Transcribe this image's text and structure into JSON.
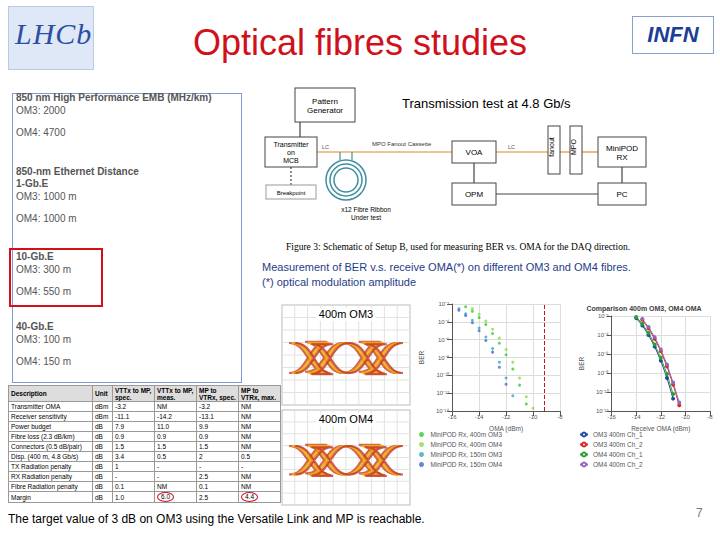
{
  "header": {
    "title": "Optical fibres studies",
    "logo_left": "LHCb",
    "logo_right": "INFN"
  },
  "fibre_specs": [
    {
      "headings": [
        "850 nm High Performance EMB (MHz/km)"
      ],
      "lines": [
        "OM3: 2000",
        "OM4: 4700"
      ],
      "highlighted": false
    },
    {
      "headings": [
        "850-nm Ethernet Distance",
        "1-Gb.E"
      ],
      "lines": [
        "OM3: 1000 m",
        "OM4: 1000 m"
      ],
      "highlighted": false
    },
    {
      "headings": [
        "10-Gb.E"
      ],
      "lines": [
        "OM3: 300 m",
        "OM4: 550 m"
      ],
      "highlighted": true
    },
    {
      "headings": [
        "40-Gb.E"
      ],
      "lines": [
        "OM3: 100 m",
        "OM4: 150 m"
      ],
      "highlighted": false
    }
  ],
  "schematic": {
    "title": "Transmission test at 4.8 Gb/s",
    "nodes": {
      "pattern_generator": [
        "Pattern",
        "Generator"
      ],
      "transmitter": [
        "Transmitter",
        "on",
        "MCB"
      ],
      "cassette": [
        "MPO Fanout Cassette"
      ],
      "voa": [
        "VOA"
      ],
      "fanout": [
        "fanout"
      ],
      "mpo": [
        "MPO"
      ],
      "minipod": [
        "MiniPOD",
        "RX"
      ],
      "opm": [
        "OPM"
      ],
      "pc": [
        "PC"
      ],
      "breakpoint": [
        "Breakpoint"
      ],
      "fibre": [
        "x12 Fibre Ribbon",
        "Under test"
      ]
    },
    "link_labels": {
      "tx_to_voa": "LC",
      "voa_to_fanout": "LC"
    },
    "caption": "Figure 3: Schematic of Setup B, used for measuring BER vs. OMA for the DAQ direction."
  },
  "measurement_text": [
    "Measurement of BER v.s. receive OMA(*) on different OM3 and OM4 fibres.",
    "(*) optical modulation amplitude"
  ],
  "eye_diagrams": [
    {
      "label": "400m OM3"
    },
    {
      "label": "400m OM4"
    }
  ],
  "chart_data": [
    {
      "type": "scatter",
      "log": "y",
      "grid": true,
      "x_label": "OMA (dBm)",
      "y_label": "BER",
      "xlim": [
        -16,
        -8
      ],
      "xticks": [
        -16,
        -14,
        -12,
        -10,
        -8
      ],
      "ylim": [
        1e-14,
        0.01
      ],
      "yticks": [
        {
          "value": 1e-14,
          "label": "10⁻¹⁴"
        },
        {
          "value": 1e-12,
          "label": "10⁻¹²"
        },
        {
          "value": 1e-10,
          "label": "10⁻¹⁰"
        },
        {
          "value": 1e-08,
          "label": "10⁻⁸"
        },
        {
          "value": 1e-06,
          "label": "10⁻⁶"
        },
        {
          "value": 0.0001,
          "label": "10⁻⁴"
        },
        {
          "value": 0.01,
          "label": "10⁻²"
        }
      ],
      "reference_x": -9.2,
      "x": [
        -15.5,
        -15,
        -14.5,
        -14,
        -13.5,
        -13,
        -12.5,
        -12,
        -11.5,
        -11,
        -10.5,
        -10
      ],
      "series": [
        {
          "name": "MiniPOD Rx, 400m OM3",
          "color": "#33cc33",
          "values": [
            null,
            0.005,
            0.0015,
            0.0003,
            5e-05,
            5e-06,
            4e-07,
            2e-08,
            5e-10,
            8e-12,
            6e-14,
            null
          ]
        },
        {
          "name": "MiniPOD Rx, 400m OM4",
          "color": "#88dd44",
          "values": [
            null,
            null,
            0.003,
            0.0007,
            0.00012,
            1.5e-05,
            1.5e-06,
            8e-08,
            3e-09,
            5e-11,
            4e-13,
            2e-14
          ]
        },
        {
          "name": "MiniPOD Rx, 150m OM3",
          "color": "#33aabb",
          "values": [
            0.003,
            0.0008,
            0.00015,
            2e-05,
            2e-06,
            1e-07,
            3e-09,
            5e-11,
            5e-13,
            null,
            null,
            null
          ]
        },
        {
          "name": "MiniPOD Rx, 150m OM4",
          "color": "#4466cc",
          "values": [
            0.002,
            0.0005,
            8e-05,
            1e-05,
            8e-07,
            4e-08,
            8e-10,
            1e-11,
            null,
            null,
            null,
            null
          ]
        }
      ]
    },
    {
      "type": "line",
      "title": "Comparison 400m OM3, OM4 OMA",
      "log": "y",
      "grid": true,
      "x_label": "Receive OMA (dBm)",
      "y_label": "BER",
      "xlim": [
        -16,
        -8
      ],
      "xticks": [
        -16,
        -14,
        -12,
        -10,
        -8
      ],
      "ylim": [
        1e-12,
        0.01
      ],
      "yticks": [
        {
          "value": 1e-12,
          "label": "10⁻¹²"
        },
        {
          "value": 1e-10,
          "label": "10⁻¹⁰"
        },
        {
          "value": 1e-08,
          "label": "10⁻⁸"
        },
        {
          "value": 1e-06,
          "label": "10⁻⁶"
        },
        {
          "value": 0.0001,
          "label": "10⁻⁴"
        },
        {
          "value": 0.01,
          "label": "10⁻²"
        }
      ],
      "x": [
        -14,
        -13.5,
        -13,
        -12.5,
        -12,
        -11.5,
        -11,
        -10.5,
        -10
      ],
      "series": [
        {
          "name": "OM3 400m Ch_1",
          "color": "#1f4e9c",
          "values": [
            0.006,
            0.001,
            0.0001,
            6e-06,
            2e-07,
            3e-09,
            2e-11,
            null,
            null
          ]
        },
        {
          "name": "OM3 400m Ch_2",
          "color": "#d62728",
          "values": [
            null,
            0.004,
            0.0005,
            4e-05,
            2e-06,
            5e-08,
            6e-10,
            4e-12,
            null
          ]
        },
        {
          "name": "OM4 400m Ch_1",
          "color": "#2ca02c",
          "values": [
            0.008,
            0.0015,
            0.00016,
            1e-05,
            4e-07,
            8e-09,
            6e-11,
            null,
            null
          ]
        },
        {
          "name": "OM4 400m Ch_2",
          "color": "#9467bd",
          "values": [
            null,
            0.005,
            0.0007,
            6e-05,
            3e-06,
            8e-08,
            1e-09,
            8e-12,
            null
          ]
        }
      ]
    }
  ],
  "table": {
    "header": [
      "Description",
      "Unit",
      "VTTx to MP, spec.",
      "VTTx to MP, meas.",
      "MP to VTRx, spec.",
      "MP to VTRx, max."
    ],
    "rows": [
      [
        "Transmitter OMA",
        "dBm",
        "-3.2",
        "NM",
        "-3.2",
        "NM"
      ],
      [
        "Receiver sensitivity",
        "dBm",
        "-11.1",
        "-14.2",
        "-13.1",
        "NM"
      ],
      [
        "Power budget",
        "dB",
        "7.9",
        "11.0",
        "9.9",
        "NM"
      ],
      [
        "Fibre loss (2.3 dB/km)",
        "dB",
        "0.9",
        "0.9",
        "0.9",
        "NM"
      ],
      [
        "Connectors (0.5 dB/pair)",
        "dB",
        "1.5",
        "1.5",
        "1.5",
        "NM"
      ],
      [
        "Disp. (400 m, 4.8 Gb/s)",
        "dB",
        "3.4",
        "0.5",
        "2",
        "0.5"
      ],
      [
        "TX Radiation penalty",
        "dB",
        "1",
        "-",
        "-",
        "-"
      ],
      [
        "RX Radiation penalty",
        "dB",
        "-",
        "-",
        "2.5",
        "NM"
      ],
      [
        "Fibre Radiation penalty",
        "dB",
        "0.1",
        "NM",
        "0.1",
        "NM"
      ],
      [
        "Margin",
        "dB",
        "1.0",
        "6.0",
        "2.5",
        "4.4"
      ]
    ],
    "circled": [
      [
        9,
        3
      ],
      [
        9,
        5
      ]
    ]
  },
  "footer": {
    "text": "The target value of 3 dB on OM3 using the Versatile Link and MP is reachable.",
    "page": "7"
  }
}
